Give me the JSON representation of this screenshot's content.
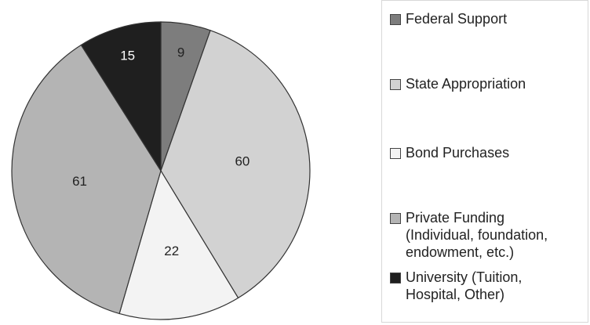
{
  "chart_data": {
    "type": "pie",
    "categories": [
      "Federal Support",
      "State Appropriation",
      "Bond Purchases",
      "Private Funding\n(Individual, foundation,\nendowment, etc.)",
      "University (Tuition,\nHospital, Other)"
    ],
    "values": [
      9,
      60,
      22,
      61,
      15
    ],
    "colors": [
      "#7d7d7d",
      "#d2d2d2",
      "#f3f3f3",
      "#b4b4b4",
      "#1f1f1f"
    ]
  }
}
